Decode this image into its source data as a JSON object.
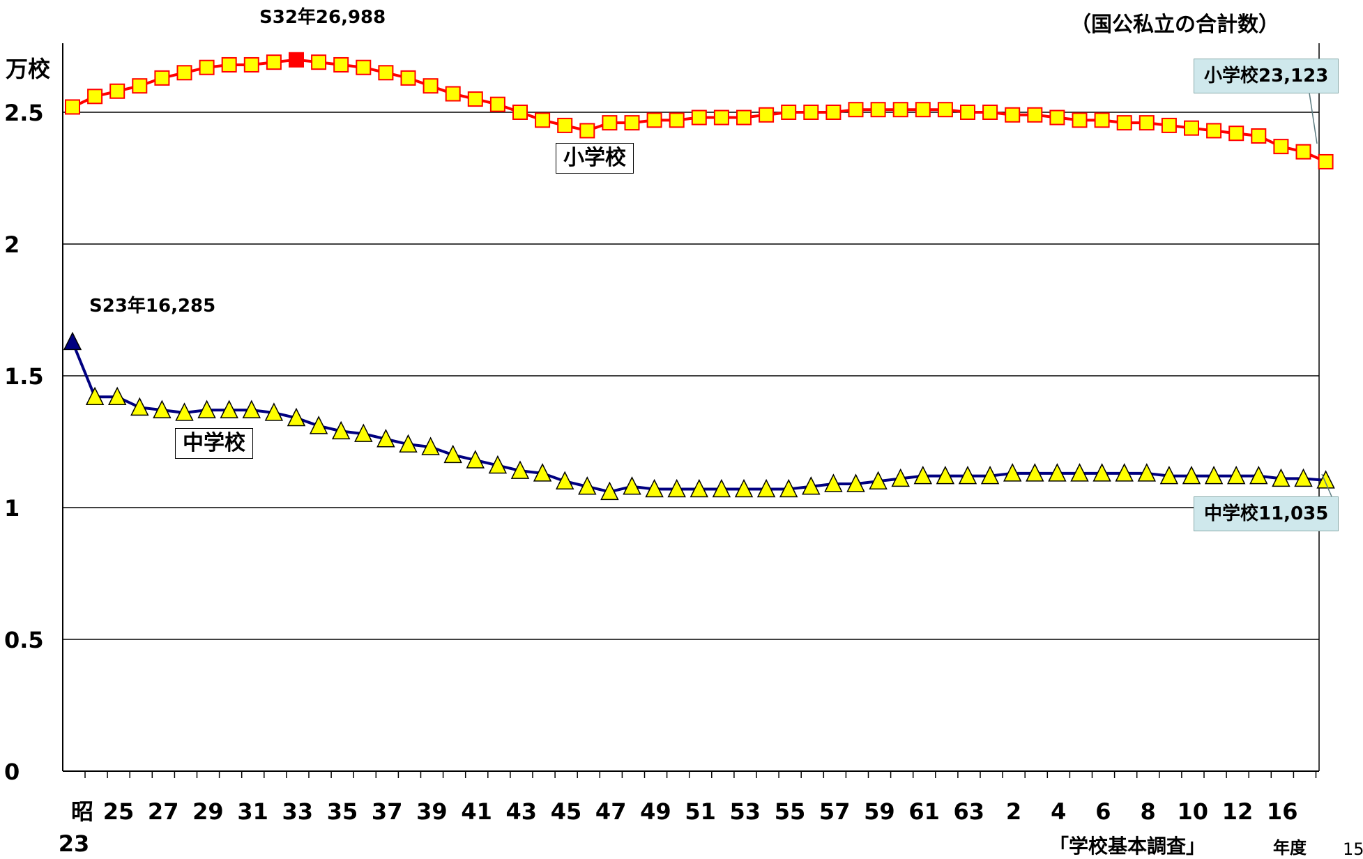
{
  "header": {
    "note": "（国公私立の合計数）",
    "unit": "万校",
    "source": "「学校基本調査」",
    "x_unit": "年度",
    "page_number": "15"
  },
  "annotations": {
    "elem_peak": "S32年26,988",
    "middle_peak": "S23年16,285",
    "elem_latest": "小学校23,123",
    "middle_latest": "中学校11,035",
    "elem_box": "小学校",
    "middle_box": "中学校"
  },
  "colors": {
    "elementary_line": "#ff0000",
    "middle_line": "#000080",
    "marker_fill": "#ffff00",
    "peak_marker": "#ff0000",
    "callout_bg": "#cfe8ec"
  },
  "chart_data": {
    "type": "line",
    "x_first_label_top": "昭",
    "x_first_label_bottom": "23",
    "x_tick_labels": [
      "25",
      "27",
      "29",
      "31",
      "33",
      "35",
      "37",
      "39",
      "41",
      "43",
      "45",
      "47",
      "49",
      "51",
      "53",
      "55",
      "57",
      "59",
      "61",
      "63",
      "2",
      "4",
      "6",
      "8",
      "10",
      "12",
      "16"
    ],
    "y_ticks": [
      "0",
      "0.5",
      "1",
      "1.5",
      "2",
      "2.5"
    ],
    "ylim": [
      0,
      2.7
    ],
    "grid": true,
    "series": [
      {
        "name": "小学校",
        "values": [
          2.52,
          2.56,
          2.58,
          2.6,
          2.63,
          2.65,
          2.67,
          2.68,
          2.68,
          2.69,
          2.699,
          2.69,
          2.68,
          2.67,
          2.65,
          2.63,
          2.6,
          2.57,
          2.55,
          2.53,
          2.5,
          2.47,
          2.45,
          2.43,
          2.46,
          2.46,
          2.47,
          2.47,
          2.48,
          2.48,
          2.48,
          2.49,
          2.5,
          2.5,
          2.5,
          2.51,
          2.51,
          2.51,
          2.51,
          2.51,
          2.5,
          2.5,
          2.49,
          2.49,
          2.48,
          2.47,
          2.47,
          2.46,
          2.46,
          2.45,
          2.44,
          2.43,
          2.42,
          2.41,
          2.37,
          2.35,
          2.3123
        ]
      },
      {
        "name": "中学校",
        "values": [
          1.6285,
          1.42,
          1.42,
          1.38,
          1.37,
          1.36,
          1.37,
          1.37,
          1.37,
          1.36,
          1.34,
          1.31,
          1.29,
          1.28,
          1.26,
          1.24,
          1.23,
          1.2,
          1.18,
          1.16,
          1.14,
          1.13,
          1.1,
          1.08,
          1.06,
          1.08,
          1.07,
          1.07,
          1.07,
          1.07,
          1.07,
          1.07,
          1.07,
          1.08,
          1.09,
          1.09,
          1.1,
          1.11,
          1.12,
          1.12,
          1.12,
          1.12,
          1.13,
          1.13,
          1.13,
          1.13,
          1.13,
          1.13,
          1.13,
          1.12,
          1.12,
          1.12,
          1.12,
          1.12,
          1.11,
          1.11,
          1.1035
        ]
      }
    ]
  }
}
